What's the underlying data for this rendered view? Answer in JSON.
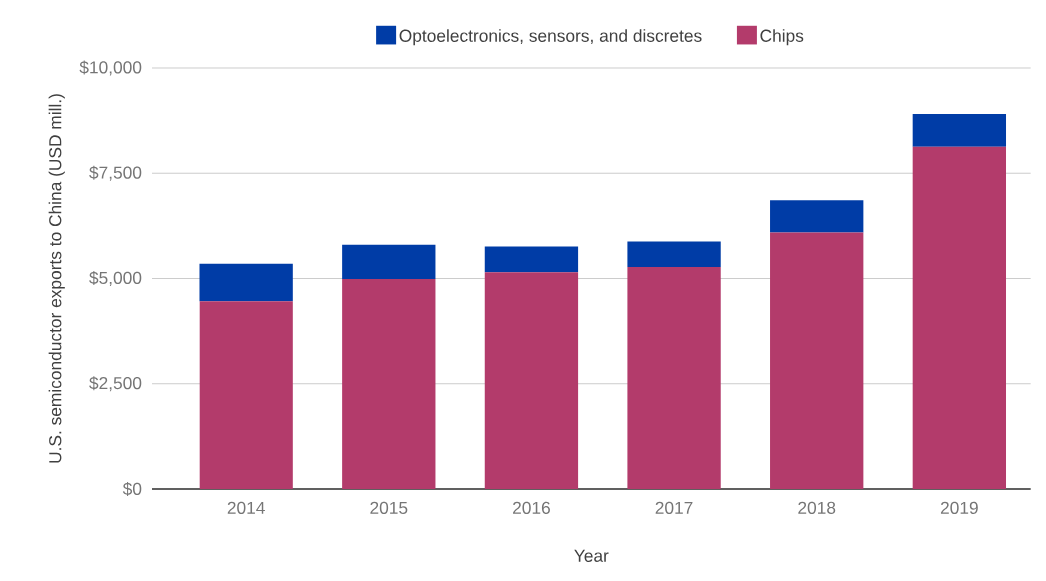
{
  "chart_data": {
    "type": "bar",
    "stacked": true,
    "xlabel": "Year",
    "ylabel": "U.S. semiconductor exports to China (USD mill.)",
    "categories": [
      "2014",
      "2015",
      "2016",
      "2017",
      "2018",
      "2019"
    ],
    "series": [
      {
        "name": "Chips",
        "color": "#b33b6b",
        "values": [
          4460,
          4990,
          5150,
          5270,
          6090,
          8130
        ]
      },
      {
        "name": "Optoelectronics, sensors, and discretes",
        "color": "#003ca6",
        "values": [
          890,
          810,
          610,
          610,
          770,
          780
        ]
      }
    ],
    "ylim": [
      0,
      10000
    ],
    "yticks": [
      {
        "value": 0,
        "label": "$0"
      },
      {
        "value": 2500,
        "label": "$2,500"
      },
      {
        "value": 5000,
        "label": "$5,000"
      },
      {
        "value": 7500,
        "label": "$7,500"
      },
      {
        "value": 10000,
        "label": "$10,000"
      }
    ],
    "grid": "y",
    "legend": "top"
  }
}
